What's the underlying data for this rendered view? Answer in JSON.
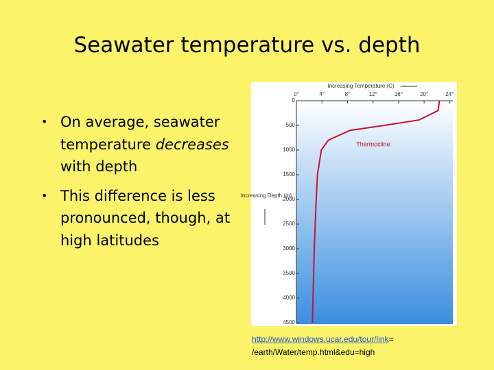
{
  "slide": {
    "title": "Seawater temperature vs. depth",
    "bullets": [
      {
        "before": "On average, seawater temperature",
        "emphasis": "decreases",
        "after": "with depth"
      },
      {
        "text": "This difference is less pronounced, though, at high latitudes"
      }
    ],
    "source": {
      "link": "http://www.windows.ucar.edu/tour/link",
      "link_end": "=",
      "line2": "/earth/Water/temp.html&edu=high"
    }
  },
  "chart_data": {
    "type": "line",
    "x_label": "Increasing Temperature (C)",
    "y_label": "Increasing Depth (m)",
    "annotation": "Thermocline",
    "x": [
      22.4,
      22.2,
      19.2,
      13.8,
      8.4,
      5.0,
      3.9,
      3.3,
      3.1,
      2.8,
      2.5
    ],
    "series": [
      {
        "color": "#d0102a",
        "values": [
          0,
          200,
          390,
          500,
          600,
          800,
          1000,
          1500,
          2000,
          3000,
          4500
        ]
      }
    ],
    "xlim": [
      0,
      24.5
    ],
    "ylim": [
      0,
      4500
    ],
    "xticks": [
      {
        "value": 0,
        "label": "0°"
      },
      {
        "value": 4,
        "label": "4°"
      },
      {
        "value": 8,
        "label": "8°"
      },
      {
        "value": 12,
        "label": "12°"
      },
      {
        "value": 16,
        "label": "16°"
      },
      {
        "value": 20,
        "label": "20°"
      },
      {
        "value": 24,
        "label": "24°"
      }
    ],
    "yticks": [
      0,
      500,
      1000,
      1500,
      2000,
      2500,
      3000,
      3500,
      4000,
      4500
    ]
  }
}
